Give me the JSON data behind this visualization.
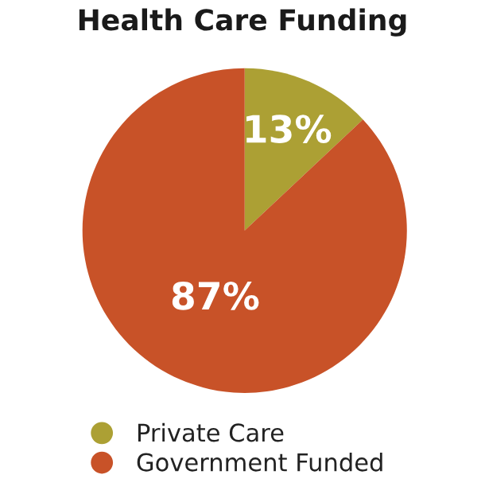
{
  "chart_data": {
    "type": "pie",
    "title": "Health Care Funding",
    "categories": [
      "Private Care",
      "Government Funded"
    ],
    "values": [
      13,
      87
    ],
    "colors": [
      "#aca034",
      "#c85228"
    ],
    "value_labels": [
      "13%",
      "87%"
    ],
    "legend": "bottom left"
  }
}
